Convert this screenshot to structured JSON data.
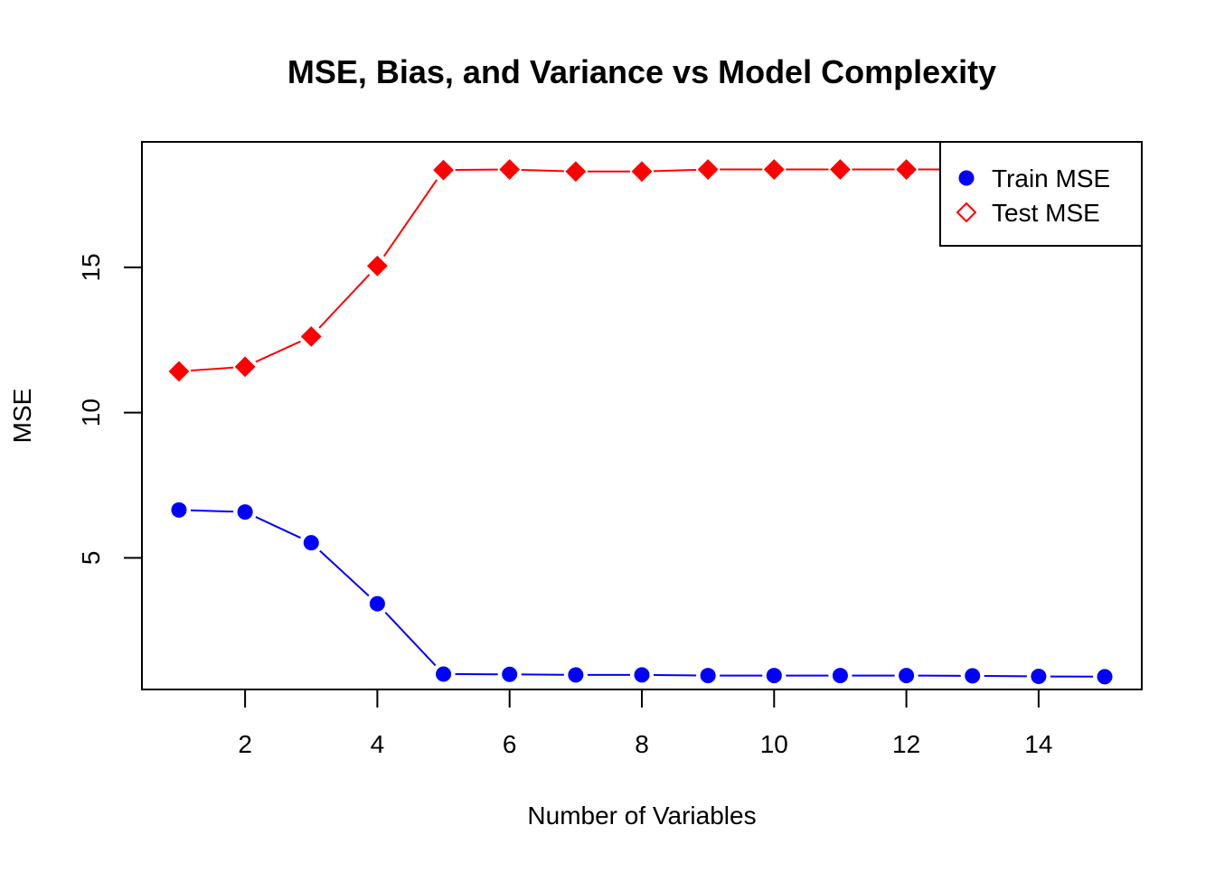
{
  "chart_data": {
    "type": "line",
    "title": "MSE, Bias, and Variance vs Model Complexity",
    "xlabel": "Number of Variables",
    "ylabel": "MSE",
    "x": [
      1,
      2,
      3,
      4,
      5,
      6,
      7,
      8,
      9,
      10,
      11,
      12,
      13,
      14,
      15
    ],
    "xlim": [
      0.44,
      15.56
    ],
    "ylim": [
      0.47,
      19.32
    ],
    "xticks": [
      2,
      4,
      6,
      8,
      10,
      12,
      14
    ],
    "yticks": [
      5,
      10,
      15
    ],
    "grid": false,
    "legend_position": "top-right",
    "series": [
      {
        "name": "Train MSE",
        "color": "#0000ff",
        "marker": "filled-circle",
        "legend_marker": "filled-circle",
        "values": [
          6.65,
          6.58,
          5.52,
          3.42,
          1.0,
          0.99,
          0.97,
          0.97,
          0.95,
          0.95,
          0.95,
          0.95,
          0.94,
          0.92,
          0.91
        ]
      },
      {
        "name": "Test MSE",
        "color": "#ff0000",
        "marker": "filled-diamond",
        "legend_marker": "open-diamond",
        "values": [
          11.42,
          11.58,
          12.62,
          15.05,
          18.35,
          18.37,
          18.3,
          18.3,
          18.37,
          18.37,
          18.37,
          18.37,
          18.37,
          18.37,
          18.37
        ]
      }
    ]
  }
}
